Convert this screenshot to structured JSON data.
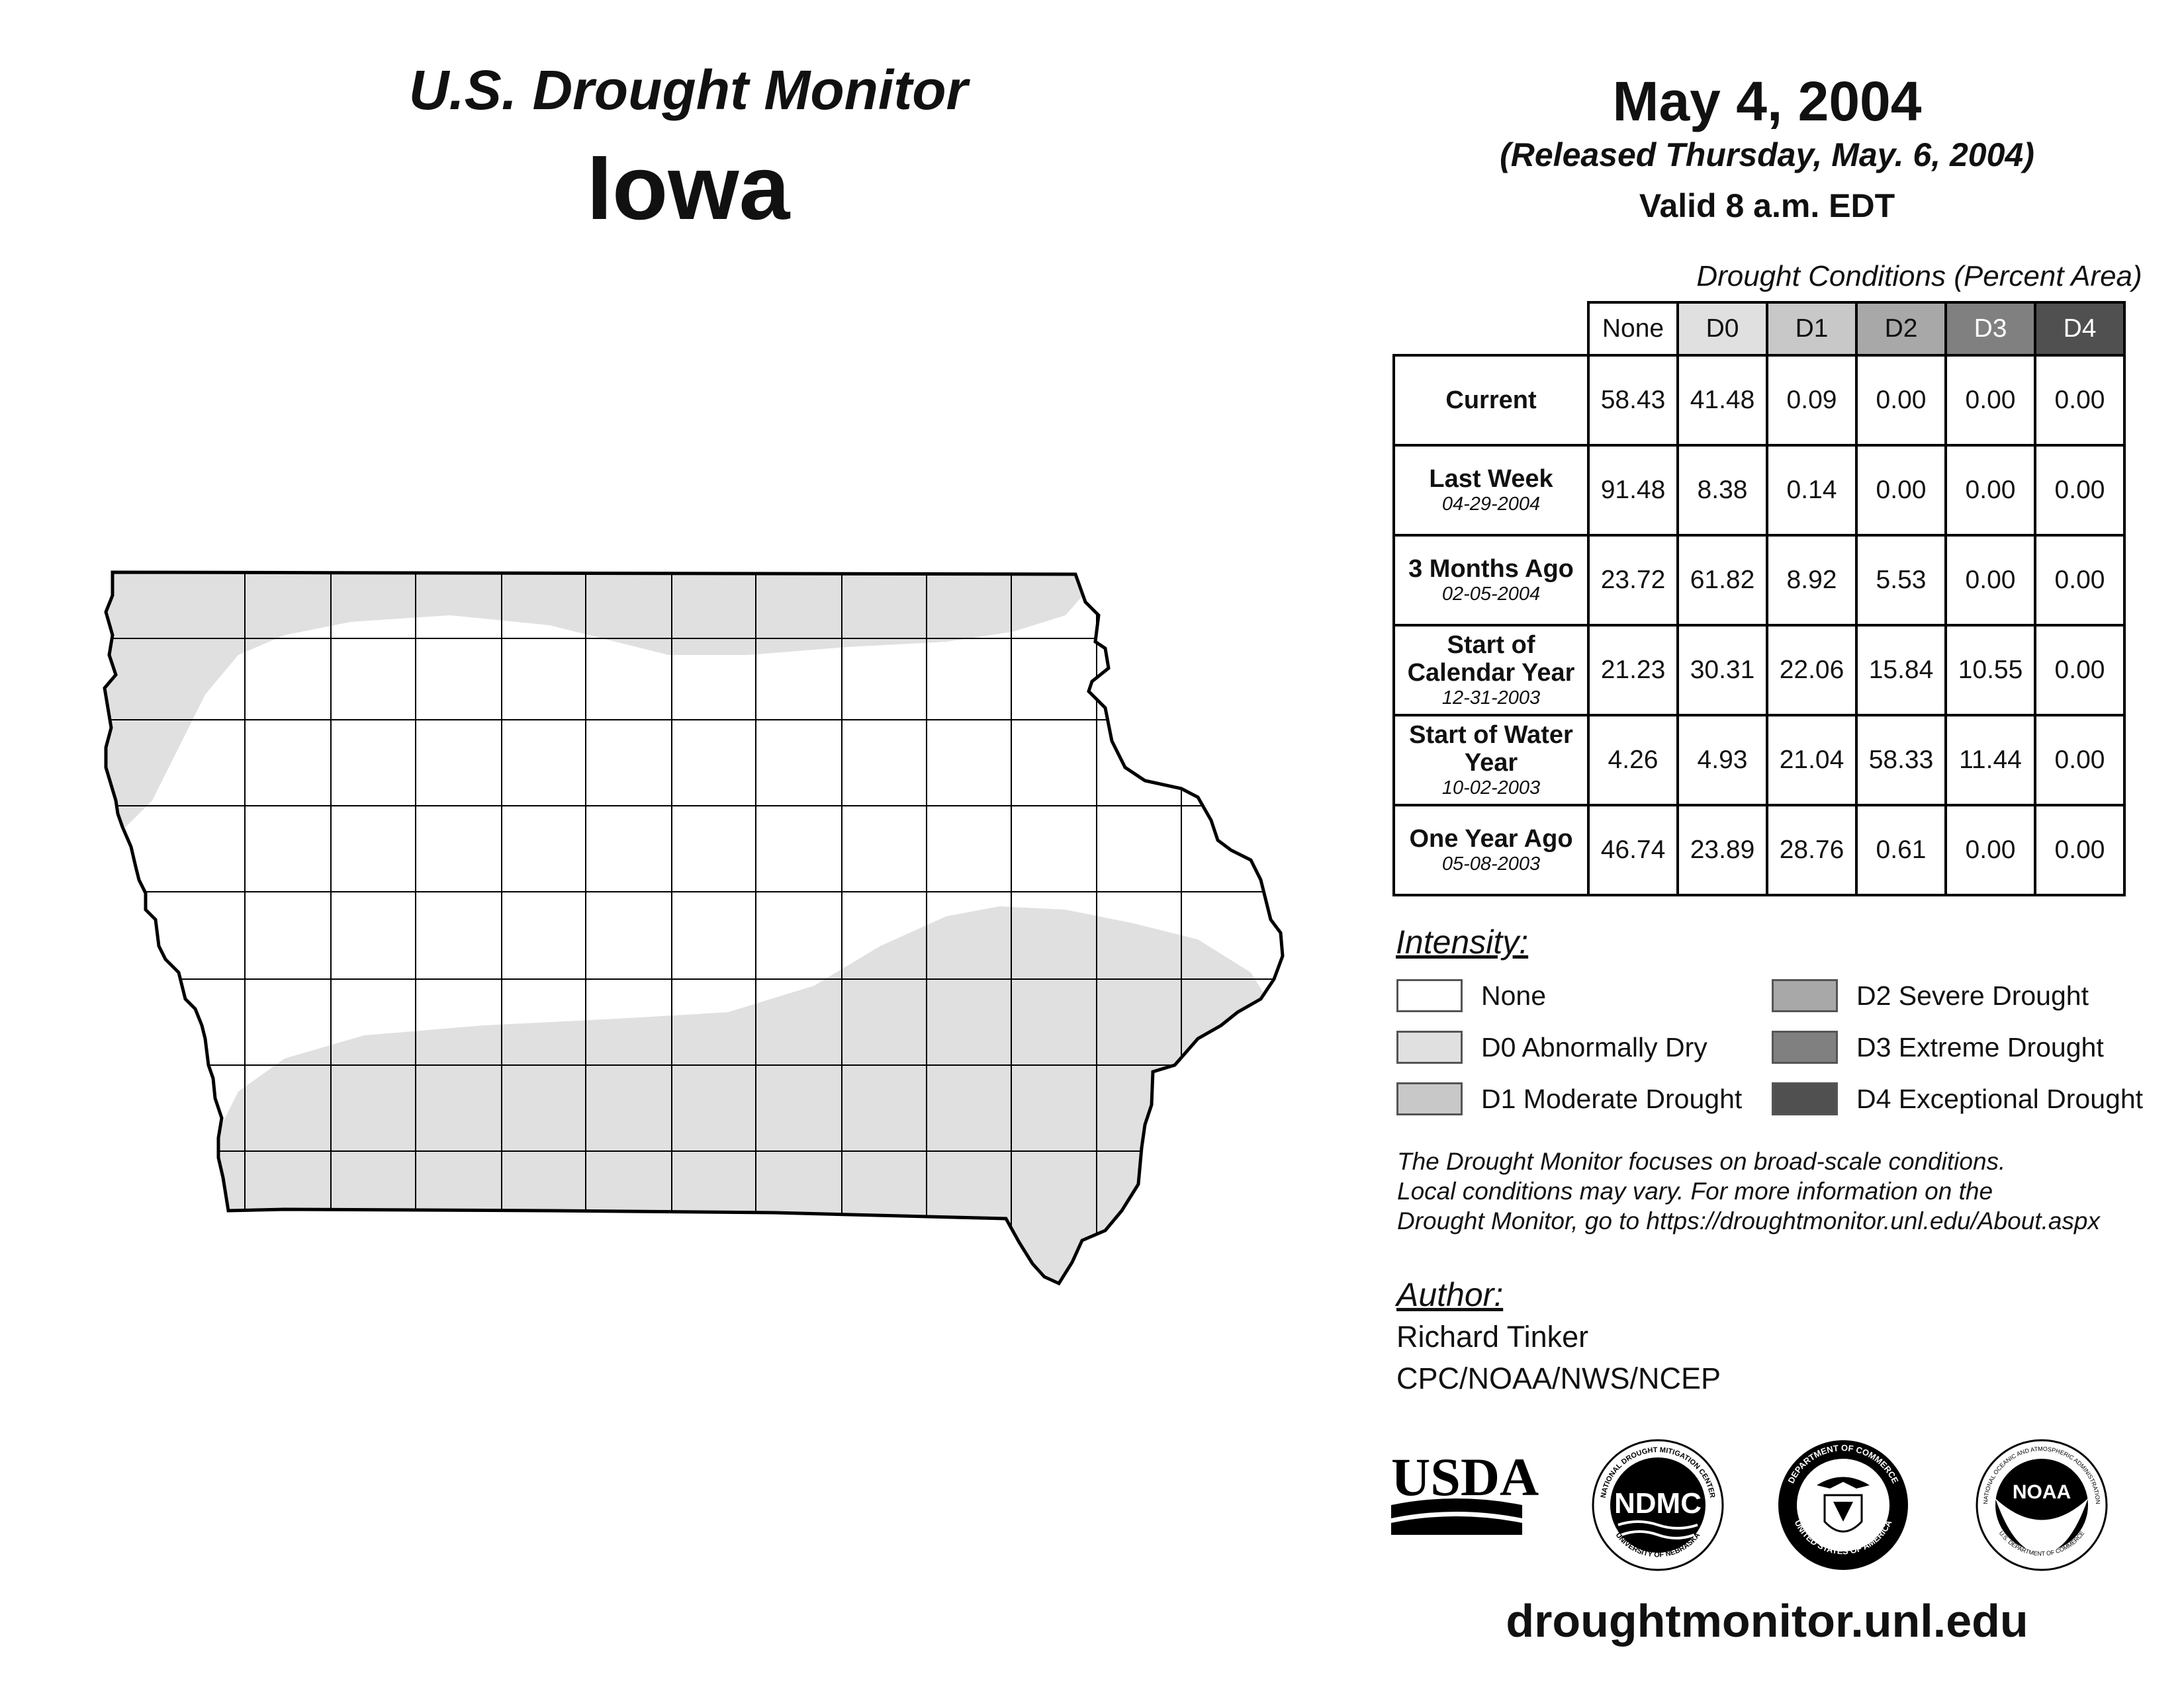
{
  "header": {
    "title": "U.S. Drought Monitor",
    "state": "Iowa",
    "date": "May 4, 2004",
    "released": "(Released Thursday, May. 6, 2004)",
    "valid": "Valid 8 a.m. EDT"
  },
  "colors": {
    "none": "#ffffff",
    "d0": "#e0e0e0",
    "d1": "#c8c8c8",
    "d2": "#a8a8a8",
    "d3": "#808080",
    "d4": "#505050",
    "outline": "#000000"
  },
  "table": {
    "caption": "Drought Conditions (Percent Area)",
    "columns": [
      "None",
      "D0",
      "D1",
      "D2",
      "D3",
      "D4"
    ],
    "rows": [
      {
        "label": "Current",
        "date": "",
        "values": [
          "58.43",
          "41.48",
          "0.09",
          "0.00",
          "0.00",
          "0.00"
        ]
      },
      {
        "label": "Last Week",
        "date": "04-29-2004",
        "values": [
          "91.48",
          "8.38",
          "0.14",
          "0.00",
          "0.00",
          "0.00"
        ]
      },
      {
        "label": "3 Months Ago",
        "date": "02-05-2004",
        "values": [
          "23.72",
          "61.82",
          "8.92",
          "5.53",
          "0.00",
          "0.00"
        ]
      },
      {
        "label": "Start of Calendar Year",
        "date": "12-31-2003",
        "values": [
          "21.23",
          "30.31",
          "22.06",
          "15.84",
          "10.55",
          "0.00"
        ]
      },
      {
        "label": "Start of Water Year",
        "date": "10-02-2003",
        "values": [
          "4.26",
          "4.93",
          "21.04",
          "58.33",
          "11.44",
          "0.00"
        ]
      },
      {
        "label": "One Year Ago",
        "date": "05-08-2003",
        "values": [
          "46.74",
          "23.89",
          "28.76",
          "0.61",
          "0.00",
          "0.00"
        ]
      }
    ]
  },
  "legend": {
    "title": "Intensity:",
    "items": [
      {
        "label": "None",
        "color": "#ffffff"
      },
      {
        "label": "D0 Abnormally Dry",
        "color": "#e0e0e0"
      },
      {
        "label": "D1 Moderate Drought",
        "color": "#c8c8c8"
      },
      {
        "label": "D2 Severe Drought",
        "color": "#a8a8a8"
      },
      {
        "label": "D3 Extreme Drought",
        "color": "#808080"
      },
      {
        "label": "D4 Exceptional Drought",
        "color": "#505050"
      }
    ]
  },
  "note": {
    "line1": "The Drought Monitor focuses on broad-scale conditions.",
    "line2": "Local conditions may vary. For more information on the",
    "line3": "Drought Monitor, go to https://droughtmonitor.unl.edu/About.aspx"
  },
  "author": {
    "title": "Author:",
    "name": "Richard Tinker",
    "org": "CPC/NOAA/NWS/NCEP"
  },
  "logos": {
    "usda": "USDA",
    "ndmc": "NDMC",
    "ndmc_ring_top": "NATIONAL DROUGHT MITIGATION CENTER",
    "ndmc_ring_bottom": "UNIVERSITY OF NEBRASKA",
    "doc_ring_top": "DEPARTMENT OF COMMERCE",
    "doc_ring_bottom": "UNITED STATES OF AMERICA",
    "noaa": "NOAA",
    "noaa_ring_top": "NATIONAL OCEANIC AND ATMOSPHERIC ADMINISTRATION",
    "noaa_ring_bottom": "U.S. DEPARTMENT OF COMMERCE"
  },
  "footer": {
    "url": "droughtmonitor.unl.edu"
  }
}
